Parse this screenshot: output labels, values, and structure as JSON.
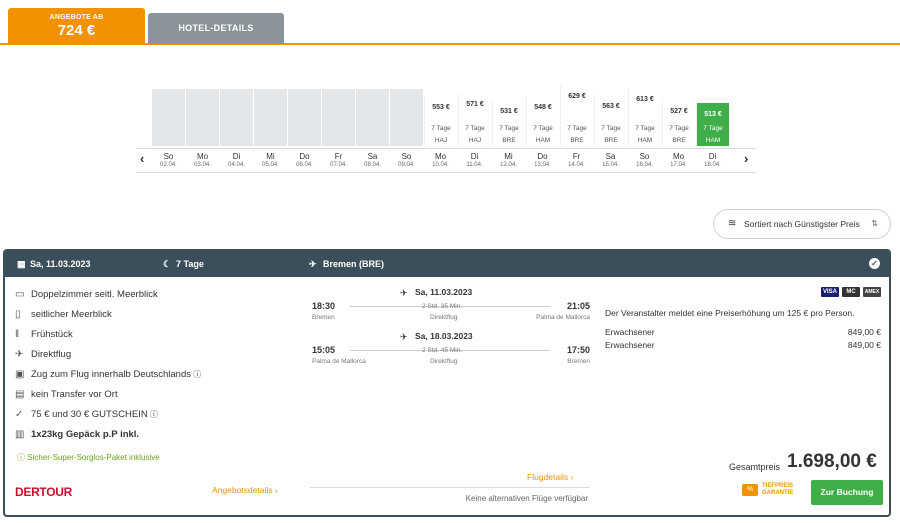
{
  "tabs": {
    "offer_label": "ANGEBOTE AB",
    "offer_price": "724 €",
    "hotel_label": "HOTEL-DETAILS"
  },
  "calendar": {
    "prev": "‹",
    "next": "›",
    "days": [
      {
        "wd": "So",
        "dt": "02.04.",
        "price": null
      },
      {
        "wd": "Mo",
        "dt": "03.04.",
        "price": null
      },
      {
        "wd": "Di",
        "dt": "04.04.",
        "price": null
      },
      {
        "wd": "Mi",
        "dt": "05.04.",
        "price": null
      },
      {
        "wd": "Do",
        "dt": "06.04.",
        "price": null
      },
      {
        "wd": "Fr",
        "dt": "07.04.",
        "price": null
      },
      {
        "wd": "Sa",
        "dt": "08.04.",
        "price": null
      },
      {
        "wd": "So",
        "dt": "09.04.",
        "price": null
      },
      {
        "wd": "Mo",
        "dt": "10.04.",
        "price": "553 €",
        "dur": "7 Tage",
        "ap": "HAJ",
        "level": 0.62
      },
      {
        "wd": "Di",
        "dt": "11.04.",
        "price": "571 €",
        "dur": "7 Tage",
        "ap": "HAJ",
        "level": 0.66
      },
      {
        "wd": "Mi",
        "dt": "12.04.",
        "price": "531 €",
        "dur": "7 Tage",
        "ap": "BRE",
        "level": 0.58
      },
      {
        "wd": "Do",
        "dt": "13.04.",
        "price": "548 €",
        "dur": "7 Tage",
        "ap": "HAM",
        "level": 0.62
      },
      {
        "wd": "Fr",
        "dt": "14.04.",
        "price": "629 €",
        "dur": "7 Tage",
        "ap": "BRE",
        "level": 0.76
      },
      {
        "wd": "Sa",
        "dt": "15.04.",
        "price": "563 €",
        "dur": "7 Tage",
        "ap": "BRE",
        "level": 0.64
      },
      {
        "wd": "So",
        "dt": "16.04.",
        "price": "613 €",
        "dur": "7 Tage",
        "ap": "HAM",
        "level": 0.72
      },
      {
        "wd": "Mo",
        "dt": "17.04.",
        "price": "527 €",
        "dur": "7 Tage",
        "ap": "BRE",
        "level": 0.57
      },
      {
        "wd": "Di",
        "dt": "18.04.",
        "price": "513 €",
        "dur": "7 Tage",
        "ap": "HAM",
        "level": 0.54,
        "selected": true
      }
    ]
  },
  "sort": {
    "label": "Sortiert nach Günstigster Preis"
  },
  "card": {
    "date": "Sa, 11.03.2023",
    "duration": "7 Tage",
    "departure": "Bremen (BRE)",
    "features": [
      {
        "icon": "bed-icon",
        "text": "Doppelzimmer seitl. Meerblick",
        "bold": false
      },
      {
        "icon": "window-icon",
        "text": "seitlicher Meerblick",
        "bold": false
      },
      {
        "icon": "cutlery-icon",
        "text": "Frühstück",
        "bold": false
      },
      {
        "icon": "plane-icon",
        "text": "Direktflug",
        "bold": false
      },
      {
        "icon": "train-icon",
        "text": "Zug zum Flug innerhalb Deutschlands",
        "bold": false
      },
      {
        "icon": "bus-icon",
        "text": "kein Transfer vor Ort",
        "bold": false
      },
      {
        "icon": "check-icon",
        "text": "75 € und 30 € GUTSCHEIN",
        "bold": false
      },
      {
        "icon": "luggage-icon",
        "text": "1x23kg Gepäck p.P inkl.",
        "bold": true
      }
    ],
    "package_note": "Sicher-Super-Sorglos-Paket inklusive",
    "operator": "DERTOUR",
    "offer_details": "Angebotsdetails",
    "outbound": {
      "date": "Sa, 11.03.2023",
      "dep_time": "18:30",
      "dep_city": "Bremen",
      "duration": "2 Std. 35 Min.",
      "type": "Direktflug",
      "arr_time": "21:05",
      "arr_city": "Palma de Mallorca"
    },
    "inbound": {
      "date": "Sa, 18.03.2023",
      "dep_time": "15:05",
      "dep_city": "Palma de Mallorca",
      "duration": "2 Std. 45 Min.",
      "type": "Direktflug",
      "arr_time": "17:50",
      "arr_city": "Bremen"
    },
    "flight_details": "Flugdetails",
    "no_alternatives": "Keine alternativen Flüge verfügbar",
    "payments": [
      "VISA",
      "MC",
      "AMEX"
    ],
    "notice": "Der Veranstalter meldet eine Preiserhöhung um 125 € pro Person.",
    "prices": [
      {
        "label": "Erwachsener",
        "value": "849,00 €"
      },
      {
        "label": "Erwachsener",
        "value": "849,00 €"
      }
    ],
    "total_label": "Gesamtpreis",
    "total": "1.698,00 €",
    "tiefpreis": "TIEFPREIS GARANTIE",
    "book": "Zur Buchung"
  }
}
